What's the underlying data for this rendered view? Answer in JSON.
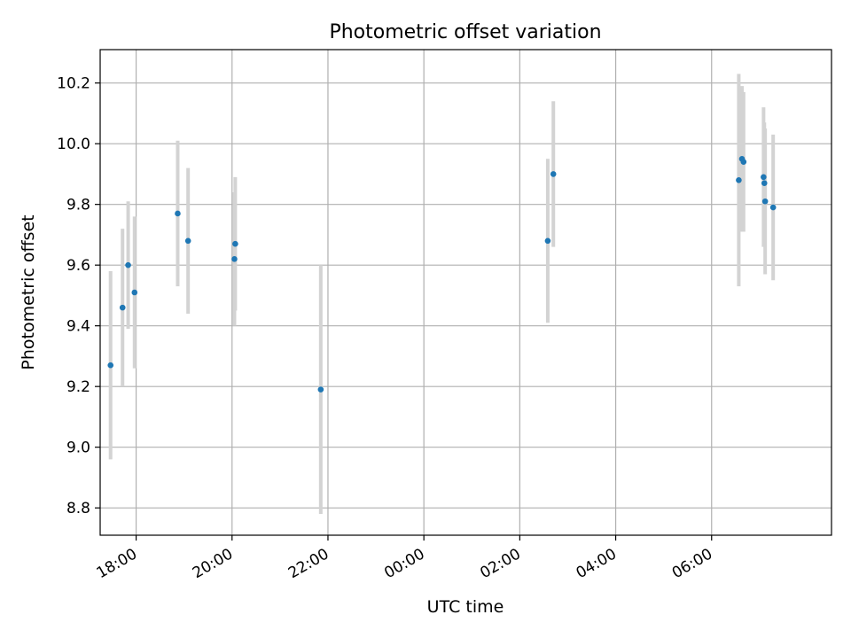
{
  "chart_data": {
    "type": "scatter",
    "title": "Photometric offset variation",
    "xlabel": "UTC time",
    "ylabel": "Photometric offset",
    "x_is_time": true,
    "xlim": [
      "17:15",
      "08:30"
    ],
    "ylim": [
      8.71,
      10.31
    ],
    "x_ticks": [
      "18:00",
      "20:00",
      "22:00",
      "00:00",
      "02:00",
      "04:00",
      "06:00"
    ],
    "y_ticks": [
      "8.8",
      "9.0",
      "9.2",
      "9.4",
      "9.6",
      "9.8",
      "10.0",
      "10.2"
    ],
    "grid": true,
    "point_color": "#1f77b4",
    "errorbar_color": "#d3d3d3",
    "points": [
      {
        "x": "17:28",
        "y": 9.27,
        "yerr": 0.31
      },
      {
        "x": "17:43",
        "y": 9.46,
        "yerr": 0.26
      },
      {
        "x": "17:50",
        "y": 9.6,
        "yerr": 0.21
      },
      {
        "x": "17:58",
        "y": 9.51,
        "yerr": 0.25
      },
      {
        "x": "18:52",
        "y": 9.77,
        "yerr": 0.24
      },
      {
        "x": "19:05",
        "y": 9.68,
        "yerr": 0.24
      },
      {
        "x": "20:03",
        "y": 9.62,
        "yerr": 0.22
      },
      {
        "x": "20:04",
        "y": 9.67,
        "yerr": 0.22
      },
      {
        "x": "21:51",
        "y": 9.19,
        "yerr": 0.41
      },
      {
        "x": "02:35",
        "y": 9.68,
        "yerr": 0.27
      },
      {
        "x": "02:42",
        "y": 9.9,
        "yerr": 0.24
      },
      {
        "x": "06:34",
        "y": 9.88,
        "yerr": 0.35
      },
      {
        "x": "06:38",
        "y": 9.95,
        "yerr": 0.24
      },
      {
        "x": "06:40",
        "y": 9.94,
        "yerr": 0.23
      },
      {
        "x": "07:05",
        "y": 9.89,
        "yerr": 0.23
      },
      {
        "x": "07:06",
        "y": 9.87,
        "yerr": 0.2
      },
      {
        "x": "07:07",
        "y": 9.81,
        "yerr": 0.24
      },
      {
        "x": "07:17",
        "y": 9.79,
        "yerr": 0.24
      }
    ]
  }
}
